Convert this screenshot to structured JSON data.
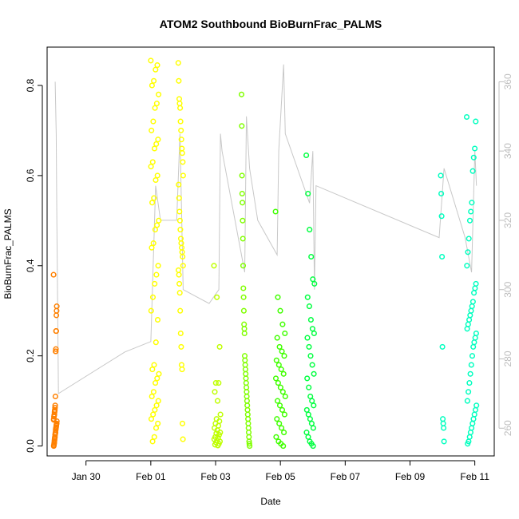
{
  "chart_data": {
    "type": "scatter",
    "title": "ATOM2 Southbound BioBurnFrac_PALMS",
    "xlabel": "Date",
    "ylabel": "BioBurnFrac_PALMS",
    "x_axis_unit": "day",
    "x_ticks": [
      {
        "value": 30.0,
        "label": "Jan 30"
      },
      {
        "value": 32.0,
        "label": "Feb 01"
      },
      {
        "value": 34.0,
        "label": "Feb 03"
      },
      {
        "value": 36.0,
        "label": "Feb 05"
      },
      {
        "value": 38.0,
        "label": "Feb 07"
      },
      {
        "value": 40.0,
        "label": "Feb 09"
      },
      {
        "value": 42.0,
        "label": "Feb 11"
      }
    ],
    "xlim": [
      28.8,
      42.6
    ],
    "ylim": [
      -0.022,
      0.885
    ],
    "y_ticks": [
      0.0,
      0.2,
      0.4,
      0.6,
      0.8
    ],
    "y_tick_labels": [
      "0.0",
      "0.2",
      "0.4",
      "0.6",
      "0.8"
    ],
    "y2_ticks": [
      260,
      280,
      300,
      320,
      340,
      360
    ],
    "y2_tick_labels": [
      "260",
      "280",
      "300",
      "320",
      "340",
      "360"
    ],
    "y2lim": [
      252,
      370
    ],
    "grid": false,
    "legend": "none",
    "line_color": "#c8c8c8",
    "series": [
      {
        "color": "#ff8000",
        "x_start": 29.0,
        "x_end": 29.1,
        "count": 70,
        "values": [
          0.38,
          0.31,
          0.3,
          0.29,
          0.255,
          0.255,
          0.215,
          0.21,
          0.21,
          0.11,
          0.09,
          0.085,
          0.08,
          0.078,
          0.075,
          0.07,
          0.068,
          0.065,
          0.06,
          0.058,
          0.055,
          0.05,
          0.048,
          0.045,
          0.042,
          0.04,
          0.038,
          0.035,
          0.03,
          0.028,
          0.025,
          0.02,
          0.018,
          0.015,
          0.012,
          0.008,
          0.005,
          0.002,
          0.0
        ]
      },
      {
        "color": "#ffff00",
        "x_start": 32.0,
        "x_end": 32.25,
        "count": 120,
        "values": [
          0.855,
          0.845,
          0.835,
          0.81,
          0.8,
          0.78,
          0.76,
          0.75,
          0.72,
          0.7,
          0.68,
          0.67,
          0.66,
          0.63,
          0.62,
          0.6,
          0.59,
          0.55,
          0.54,
          0.5,
          0.49,
          0.48,
          0.45,
          0.44,
          0.4,
          0.38,
          0.36,
          0.33,
          0.3,
          0.28,
          0.23,
          0.18,
          0.17,
          0.16,
          0.15,
          0.14,
          0.12,
          0.11,
          0.1,
          0.09,
          0.08,
          0.07,
          0.06,
          0.05,
          0.04,
          0.02,
          0.01
        ]
      },
      {
        "color": "#ffff00",
        "x_start": 32.85,
        "x_end": 33.0,
        "count": 110,
        "values": [
          0.85,
          0.81,
          0.77,
          0.76,
          0.75,
          0.72,
          0.7,
          0.68,
          0.66,
          0.65,
          0.63,
          0.6,
          0.58,
          0.55,
          0.52,
          0.5,
          0.48,
          0.46,
          0.45,
          0.44,
          0.43,
          0.42,
          0.4,
          0.39,
          0.38,
          0.36,
          0.34,
          0.3,
          0.25,
          0.22,
          0.18,
          0.17,
          0.05,
          0.015
        ]
      },
      {
        "color": "#bfff00",
        "x_start": 33.95,
        "x_end": 34.15,
        "count": 90,
        "values": [
          0.4,
          0.33,
          0.22,
          0.14,
          0.14,
          0.12,
          0.1,
          0.07,
          0.06,
          0.055,
          0.05,
          0.045,
          0.04,
          0.035,
          0.03,
          0.028,
          0.025,
          0.02,
          0.018,
          0.015,
          0.012,
          0.01,
          0.008,
          0.005,
          0.003,
          0.001
        ]
      },
      {
        "color": "#80ff00",
        "x_start": 34.8,
        "x_end": 35.05,
        "count": 150,
        "values": [
          0.78,
          0.71,
          0.6,
          0.56,
          0.54,
          0.5,
          0.46,
          0.4,
          0.35,
          0.33,
          0.3,
          0.27,
          0.26,
          0.25,
          0.2,
          0.19,
          0.18,
          0.17,
          0.16,
          0.15,
          0.14,
          0.13,
          0.12,
          0.11,
          0.1,
          0.09,
          0.08,
          0.07,
          0.06,
          0.05,
          0.04,
          0.03,
          0.02,
          0.01,
          0.005,
          0.0
        ]
      },
      {
        "color": "#40ff00",
        "x_start": 35.85,
        "x_end": 36.15,
        "count": 160,
        "values": [
          0.52,
          0.33,
          0.3,
          0.27,
          0.25,
          0.24,
          0.22,
          0.21,
          0.2,
          0.19,
          0.18,
          0.17,
          0.16,
          0.15,
          0.14,
          0.13,
          0.12,
          0.11,
          0.1,
          0.09,
          0.08,
          0.07,
          0.06,
          0.05,
          0.04,
          0.03,
          0.02,
          0.01,
          0.005,
          0.0
        ]
      },
      {
        "color": "#00ff40",
        "x_start": 36.8,
        "x_end": 37.05,
        "count": 150,
        "values": [
          0.645,
          0.56,
          0.48,
          0.42,
          0.37,
          0.36,
          0.33,
          0.31,
          0.28,
          0.26,
          0.25,
          0.24,
          0.22,
          0.2,
          0.18,
          0.16,
          0.15,
          0.13,
          0.11,
          0.1,
          0.09,
          0.08,
          0.07,
          0.06,
          0.05,
          0.04,
          0.03,
          0.02,
          0.01,
          0.005,
          0.0
        ]
      },
      {
        "color": "#00ffbf",
        "x_start": 40.95,
        "x_end": 41.05,
        "count": 12,
        "values": [
          0.6,
          0.56,
          0.51,
          0.42,
          0.22,
          0.06,
          0.05,
          0.04,
          0.01
        ]
      },
      {
        "color": "#00ffbf",
        "x_start": 41.75,
        "x_end": 42.05,
        "count": 160,
        "values": [
          0.73,
          0.72,
          0.66,
          0.64,
          0.61,
          0.54,
          0.52,
          0.5,
          0.46,
          0.43,
          0.4,
          0.36,
          0.35,
          0.34,
          0.32,
          0.31,
          0.3,
          0.29,
          0.28,
          0.27,
          0.26,
          0.25,
          0.24,
          0.23,
          0.22,
          0.2,
          0.18,
          0.16,
          0.14,
          0.12,
          0.1,
          0.09,
          0.08,
          0.07,
          0.06,
          0.05,
          0.04,
          0.03,
          0.02,
          0.01,
          0.005
        ]
      }
    ],
    "altitude_line": [
      [
        29.05,
        360
      ],
      [
        29.08,
        345
      ],
      [
        29.1,
        320
      ],
      [
        29.15,
        270
      ],
      [
        31.2,
        282
      ],
      [
        32.0,
        285
      ],
      [
        32.05,
        300
      ],
      [
        32.15,
        330
      ],
      [
        32.3,
        320
      ],
      [
        32.8,
        320
      ],
      [
        32.9,
        345
      ],
      [
        33.0,
        300
      ],
      [
        33.8,
        296
      ],
      [
        34.1,
        300
      ],
      [
        34.15,
        345
      ],
      [
        34.2,
        340
      ],
      [
        34.9,
        305
      ],
      [
        34.95,
        350
      ],
      [
        35.05,
        335
      ],
      [
        35.3,
        320
      ],
      [
        35.9,
        310
      ],
      [
        35.95,
        340
      ],
      [
        36.1,
        365
      ],
      [
        36.15,
        345
      ],
      [
        36.9,
        325
      ],
      [
        37.0,
        340
      ],
      [
        37.05,
        300
      ],
      [
        37.1,
        330
      ],
      [
        40.9,
        315
      ],
      [
        41.05,
        335
      ],
      [
        41.7,
        315
      ],
      [
        41.9,
        305
      ],
      [
        42.0,
        340
      ],
      [
        42.05,
        330
      ]
    ]
  }
}
